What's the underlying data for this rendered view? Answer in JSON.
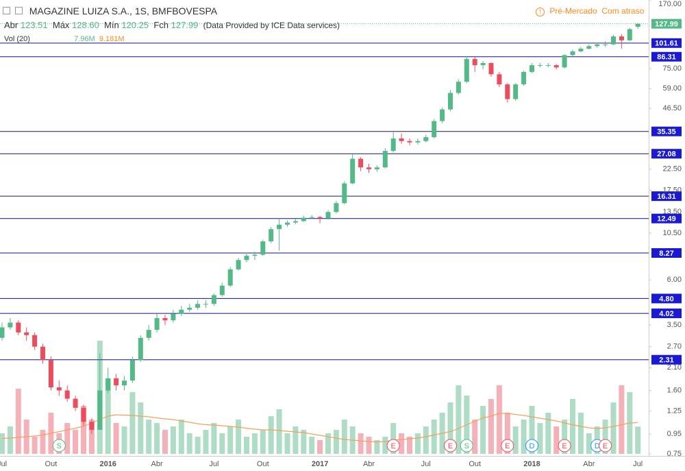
{
  "chart_data": {
    "type": "candlestick",
    "header": {
      "symbol": "MAGAZINE LUIZA S.A., 1S, BMFBOVESPA",
      "open_label": "Abr",
      "open": "123.51",
      "high_label": "Máx",
      "high": "128.60",
      "low_label": "Mín",
      "low": "120.25",
      "close_label": "Fch",
      "close": "127.99",
      "source": "(Data Provided by ICE Data services)",
      "volume_label": "Vol (20)",
      "volume": "7.96M",
      "volume_ma": "9.181M",
      "status": "Pré-Mercado",
      "delay": "Com atraso"
    },
    "categories": [
      "Jul",
      null,
      null,
      null,
      null,
      null,
      "Out",
      null,
      null,
      null,
      null,
      null,
      null,
      "2016",
      null,
      null,
      null,
      null,
      null,
      "Abr",
      null,
      null,
      null,
      null,
      null,
      null,
      "Jul",
      null,
      null,
      null,
      null,
      null,
      "Out",
      null,
      null,
      null,
      null,
      null,
      null,
      "2017",
      null,
      null,
      null,
      null,
      null,
      "Abr",
      null,
      null,
      null,
      null,
      null,
      null,
      "Jul",
      null,
      null,
      null,
      null,
      null,
      "Out",
      null,
      null,
      null,
      null,
      null,
      null,
      "2018",
      null,
      null,
      null,
      null,
      null,
      null,
      "Abr",
      null,
      null,
      null,
      null,
      null,
      "Jul"
    ],
    "open": [
      3.0,
      3.4,
      3.6,
      3.2,
      3.1,
      2.7,
      2.3,
      1.66,
      1.6,
      1.45,
      1.3,
      1.1,
      1.0,
      1.6,
      1.85,
      1.7,
      1.8,
      2.3,
      3.0,
      3.3,
      3.8,
      3.7,
      4.0,
      4.2,
      4.3,
      4.5,
      4.5,
      5.0,
      5.6,
      6.8,
      7.6,
      8.0,
      8.1,
      9.5,
      11.0,
      11.6,
      11.9,
      12.1,
      12.6,
      12.7,
      12.5,
      13.5,
      15.0,
      19.0,
      25.5,
      23.0,
      22.5,
      23.0,
      28.0,
      32.5,
      31.5,
      31.0,
      31.5,
      33.0,
      40,
      46,
      56,
      64,
      84,
      78,
      80,
      70,
      62,
      52,
      62,
      72,
      78,
      78,
      78,
      76,
      88,
      92,
      95,
      98,
      100,
      100,
      110,
      105,
      123.51
    ],
    "high": [
      3.6,
      3.8,
      3.7,
      3.4,
      3.2,
      2.8,
      2.4,
      1.8,
      1.7,
      1.5,
      1.35,
      1.15,
      2.5,
      2.1,
      1.95,
      1.9,
      2.4,
      3.1,
      3.5,
      4.0,
      3.95,
      4.2,
      4.4,
      4.5,
      4.7,
      4.7,
      5.1,
      5.8,
      7.0,
      7.8,
      8.3,
      8.4,
      9.7,
      11.3,
      12.5,
      12.2,
      12.4,
      12.9,
      13.0,
      12.9,
      13.8,
      15.4,
      19.5,
      27.0,
      26.0,
      24.0,
      23.6,
      29.0,
      35.0,
      34.5,
      32.5,
      32.5,
      34.0,
      41,
      47,
      58,
      66,
      87,
      86,
      82,
      81,
      72,
      63,
      63,
      73,
      80,
      80,
      80,
      79,
      89,
      94,
      97,
      100,
      102,
      104,
      112,
      113,
      122,
      128.6
    ],
    "low": [
      2.9,
      3.3,
      3.1,
      2.9,
      2.6,
      2.2,
      1.6,
      1.5,
      1.4,
      1.25,
      1.05,
      0.95,
      1.0,
      1.55,
      1.6,
      1.6,
      1.75,
      2.25,
      2.9,
      3.2,
      3.5,
      3.6,
      3.9,
      4.1,
      4.2,
      4.3,
      4.4,
      4.9,
      5.5,
      6.7,
      7.4,
      7.6,
      8.0,
      9.3,
      8.5,
      11.3,
      11.7,
      12.0,
      12.4,
      11.8,
      12.3,
      13.3,
      14.8,
      18.8,
      22.0,
      21.5,
      21.8,
      22.8,
      27.5,
      30.5,
      30.0,
      30.2,
      31.0,
      32.5,
      39,
      45,
      55,
      63,
      72,
      74,
      68,
      60,
      50,
      51,
      61,
      71,
      76,
      76,
      74,
      75,
      87,
      91,
      94,
      96,
      97,
      99,
      95,
      104,
      120.25
    ],
    "close": [
      3.4,
      3.6,
      3.2,
      3.1,
      2.7,
      2.3,
      1.66,
      1.6,
      1.45,
      1.3,
      1.1,
      1.0,
      1.6,
      1.85,
      1.7,
      1.8,
      2.3,
      3.0,
      3.3,
      3.8,
      3.7,
      4.0,
      4.2,
      4.3,
      4.5,
      4.5,
      5.0,
      5.6,
      6.8,
      7.6,
      8.0,
      8.1,
      9.5,
      11.0,
      11.6,
      11.9,
      12.1,
      12.6,
      12.7,
      12.5,
      13.5,
      15.0,
      19.0,
      25.5,
      23.0,
      22.5,
      23.0,
      28.0,
      32.5,
      31.5,
      31.0,
      31.5,
      33.0,
      40,
      46,
      56,
      64,
      84,
      78,
      80,
      70,
      62,
      52,
      62,
      72,
      78,
      78,
      78,
      76,
      88,
      92,
      95,
      98,
      100,
      100,
      110,
      105,
      120,
      127.99
    ],
    "volume": [
      6,
      8,
      19,
      10,
      5,
      7,
      12,
      6,
      9,
      7,
      14,
      10,
      33,
      22,
      9,
      8,
      18,
      15,
      10,
      9,
      7,
      8,
      10,
      6,
      5,
      7,
      9,
      6,
      8,
      10,
      5,
      6,
      7,
      11,
      13,
      6,
      8,
      7,
      5,
      4,
      6,
      7,
      10,
      8,
      6,
      5,
      4,
      5,
      9,
      6,
      5,
      6,
      8,
      10,
      12,
      15,
      20,
      17,
      10,
      14,
      16,
      20,
      12,
      8,
      10,
      14,
      9,
      12,
      8,
      10,
      16,
      12,
      6,
      8,
      10,
      15,
      20,
      18,
      7.96
    ],
    "volume_ma": [
      4.5,
      4.6,
      4.8,
      5,
      5.2,
      5.5,
      6,
      6.5,
      7,
      7.5,
      8,
      9,
      10,
      11,
      11.4,
      11.3,
      11.2,
      11,
      10.8,
      10.5,
      10.2,
      10,
      9.6,
      9.2,
      8.8,
      8.5,
      8.4,
      8.2,
      8,
      7.8,
      7.5,
      7.2,
      7,
      7,
      6.8,
      6.6,
      6.4,
      6.2,
      5.8,
      5.4,
      5,
      4.6,
      4.2,
      4,
      3.8,
      3.6,
      3.5,
      3.6,
      4,
      4.2,
      4.4,
      4.6,
      5,
      5.5,
      6,
      6.5,
      7.4,
      8.5,
      9.5,
      10.5,
      11,
      11.8,
      11.8,
      11.5,
      11.2,
      10.8,
      10.4,
      10,
      9.6,
      9,
      8.5,
      8,
      7.6,
      7.4,
      7.6,
      8,
      8.5,
      9,
      9.181
    ],
    "events": [
      null,
      null,
      null,
      null,
      null,
      null,
      null,
      "S",
      null,
      null,
      null,
      null,
      null,
      null,
      null,
      null,
      null,
      null,
      null,
      null,
      null,
      null,
      null,
      null,
      null,
      null,
      null,
      null,
      null,
      null,
      null,
      null,
      null,
      null,
      null,
      null,
      null,
      null,
      null,
      null,
      null,
      null,
      null,
      null,
      null,
      null,
      null,
      null,
      "E",
      null,
      null,
      null,
      null,
      null,
      null,
      "E",
      null,
      "S",
      null,
      null,
      null,
      null,
      "E",
      null,
      null,
      "D",
      null,
      null,
      null,
      "E",
      null,
      null,
      null,
      "D",
      "E",
      null,
      null,
      null,
      null
    ],
    "log_scale": true,
    "ylim": [
      0.75,
      170
    ],
    "yticks": [
      {
        "value": 170,
        "label": "170.00"
      },
      {
        "value": 75,
        "label": "75.00"
      },
      {
        "value": 59,
        "label": "59.00"
      },
      {
        "value": 46.5,
        "label": "46.50"
      },
      {
        "value": 22.5,
        "label": "22.50"
      },
      {
        "value": 17.5,
        "label": "17.50"
      },
      {
        "value": 13.5,
        "label": "13.50"
      },
      {
        "value": 10.5,
        "label": "10.50"
      },
      {
        "value": 6,
        "label": "6.00"
      },
      {
        "value": 3.5,
        "label": "3.50"
      },
      {
        "value": 2.7,
        "label": "2.70"
      },
      {
        "value": 2.1,
        "label": "2.10"
      },
      {
        "value": 1.6,
        "label": "1.60"
      },
      1.25,
      0.95,
      0.75
    ],
    "price_lines": [
      101.61,
      86.31,
      35.35,
      27.08,
      16.31,
      12.49,
      8.27,
      {
        "value": 4.8,
        "label": "4.80"
      },
      4.02,
      2.31
    ],
    "vlim": [
      0,
      40
    ],
    "up_color": "#53b987",
    "down_color": "#eb4d5c",
    "volume_up_color": "#aedcc5",
    "volume_down_color": "#f5b1b8",
    "volume_ma_color": "#f5a05a",
    "price_line_color": "#10108a",
    "price_label_color": "#1a1ad4",
    "last_price_color": "#53b987",
    "event_colors": {
      "S": "#53b987",
      "E": "#eb4d5c",
      "D": "#2196f3"
    }
  }
}
